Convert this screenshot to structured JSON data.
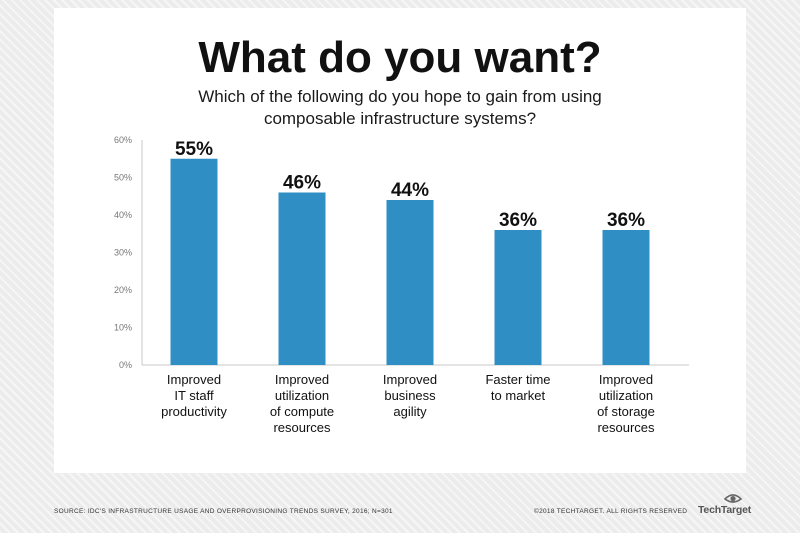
{
  "header": {
    "title": "What do you want?",
    "subtitle": "Which of the following do you hope to gain from using\ncomposable infrastructure systems?"
  },
  "chart_data": {
    "type": "bar",
    "title": "What do you want?",
    "subtitle": "Which of the following do you hope to gain from using composable infrastructure systems?",
    "categories": [
      "Improved\nIT staff\nproductivity",
      "Improved\nutilization\nof compute\nresources",
      "Improved\nbusiness\nagility",
      "Faster time\nto market",
      "Improved\nutilization\nof storage\nresources"
    ],
    "values": [
      55,
      46,
      44,
      36,
      36
    ],
    "value_labels": [
      "55%",
      "46%",
      "44%",
      "36%",
      "36%"
    ],
    "yticks": [
      "0%",
      "10%",
      "20%",
      "30%",
      "40%",
      "50%",
      "60%"
    ],
    "ylim": [
      0,
      60
    ],
    "xlabel": "",
    "ylabel": "",
    "grid": false,
    "legend": "none",
    "bar_color": "#2f8ec4"
  },
  "footer": {
    "source": "SOURCE: IDC'S INFRASTRUCTURE USAGE AND OVERPROVISIONING TRENDS SURVEY, 2016; N=301",
    "copyright": "©2018 TECHTARGET. ALL RIGHTS RESERVED",
    "logo": "TechTarget",
    "logo_icon": "eye-icon"
  }
}
